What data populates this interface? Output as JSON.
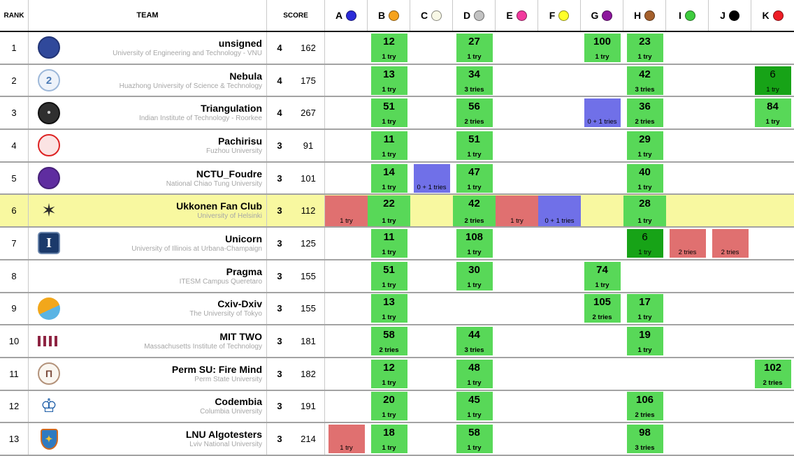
{
  "header": {
    "rank": "RANK",
    "team": "TEAM",
    "score": "SCORE"
  },
  "problems": [
    {
      "label": "A",
      "balloon_color": "#2b2bd8"
    },
    {
      "label": "B",
      "balloon_color": "#f6a21b"
    },
    {
      "label": "C",
      "balloon_color": "#f8f8e6"
    },
    {
      "label": "D",
      "balloon_color": "#c2c2c2"
    },
    {
      "label": "E",
      "balloon_color": "#f23a9e"
    },
    {
      "label": "F",
      "balloon_color": "#ffff2a"
    },
    {
      "label": "G",
      "balloon_color": "#8d169d"
    },
    {
      "label": "H",
      "balloon_color": "#a5602c"
    },
    {
      "label": "I",
      "balloon_color": "#3ecc3e"
    },
    {
      "label": "J",
      "balloon_color": "#000000"
    },
    {
      "label": "K",
      "balloon_color": "#ee1d25"
    }
  ],
  "status_colors": {
    "solved": "#58d858",
    "first_to_solve": "#17a317",
    "failed": "#e07070",
    "pending": "#7070e8",
    "highlight_row": "#f8f8a0"
  },
  "teams": [
    {
      "rank": 1,
      "name": "unsigned",
      "affiliation": "University of Engineering and Technology - VNU",
      "solved": 4,
      "penalty": 162,
      "highlight": false,
      "logo": {
        "shape": "circle",
        "bg": "#30499b",
        "border": "#223577",
        "glyph": "",
        "glyph_color": "#ffffff",
        "glyph_size": 15
      },
      "cells": {
        "B": {
          "state": "solved",
          "time": "12",
          "tries": "1 try"
        },
        "D": {
          "state": "solved",
          "time": "27",
          "tries": "1 try"
        },
        "G": {
          "state": "solved",
          "time": "100",
          "tries": "1 try"
        },
        "H": {
          "state": "solved",
          "time": "23",
          "tries": "1 try"
        }
      }
    },
    {
      "rank": 2,
      "name": "Nebula",
      "affiliation": "Huazhong University of Science & Technology",
      "solved": 4,
      "penalty": 175,
      "highlight": false,
      "logo": {
        "shape": "circle",
        "bg": "#eef3fa",
        "border": "#9db8d9",
        "glyph": "2",
        "glyph_color": "#4a7ab5",
        "glyph_size": 15
      },
      "cells": {
        "B": {
          "state": "solved",
          "time": "13",
          "tries": "1 try"
        },
        "D": {
          "state": "solved",
          "time": "34",
          "tries": "3 tries"
        },
        "H": {
          "state": "solved",
          "time": "42",
          "tries": "3 tries"
        },
        "K": {
          "state": "first",
          "time": "6",
          "tries": "1 try"
        }
      }
    },
    {
      "rank": 3,
      "name": "Triangulation",
      "affiliation": "Indian Institute of Technology - Roorkee",
      "solved": 4,
      "penalty": 267,
      "highlight": false,
      "logo": {
        "shape": "circle",
        "bg": "#2f2f2f",
        "border": "#111111",
        "glyph": "•",
        "glyph_color": "#cccccc",
        "glyph_size": 15
      },
      "cells": {
        "B": {
          "state": "solved",
          "time": "51",
          "tries": "1 try"
        },
        "D": {
          "state": "solved",
          "time": "56",
          "tries": "2 tries"
        },
        "G": {
          "state": "pending",
          "tries": "0 + 1 tries"
        },
        "H": {
          "state": "solved",
          "time": "36",
          "tries": "2 tries"
        },
        "K": {
          "state": "solved",
          "time": "84",
          "tries": "1 try"
        }
      }
    },
    {
      "rank": 4,
      "name": "Pachirisu",
      "affiliation": "Fuzhou University",
      "solved": 3,
      "penalty": 91,
      "highlight": false,
      "logo": {
        "shape": "circle",
        "bg": "#fbe3e3",
        "border": "#dd2222",
        "glyph": "",
        "glyph_color": "#dd2222",
        "glyph_size": 13
      },
      "cells": {
        "B": {
          "state": "solved",
          "time": "11",
          "tries": "1 try"
        },
        "D": {
          "state": "solved",
          "time": "51",
          "tries": "1 try"
        },
        "H": {
          "state": "solved",
          "time": "29",
          "tries": "1 try"
        }
      }
    },
    {
      "rank": 5,
      "name": "NCTU_Foudre",
      "affiliation": "National Chiao Tung University",
      "solved": 3,
      "penalty": 101,
      "highlight": false,
      "logo": {
        "shape": "circle",
        "bg": "#5f2da0",
        "border": "#47217a",
        "glyph": "",
        "glyph_color": "#ffffff",
        "glyph_size": 15
      },
      "cells": {
        "B": {
          "state": "solved",
          "time": "14",
          "tries": "1 try"
        },
        "C": {
          "state": "pending",
          "tries": "0 + 1 tries"
        },
        "D": {
          "state": "solved",
          "time": "47",
          "tries": "1 try"
        },
        "H": {
          "state": "solved",
          "time": "40",
          "tries": "1 try"
        }
      }
    },
    {
      "rank": 6,
      "name": "Ukkonen Fan Club",
      "affiliation": "University of Helsinki",
      "solved": 3,
      "penalty": 112,
      "highlight": true,
      "logo": {
        "shape": "glyph",
        "bg": "",
        "border": "",
        "glyph": "✶",
        "glyph_color": "#2b2b2b",
        "glyph_size": 26
      },
      "cells": {
        "A": {
          "state": "failed",
          "tries": "1 try"
        },
        "B": {
          "state": "solved",
          "time": "22",
          "tries": "1 try"
        },
        "D": {
          "state": "solved",
          "time": "42",
          "tries": "2 tries"
        },
        "E": {
          "state": "failed",
          "tries": "1 try"
        },
        "F": {
          "state": "pending",
          "tries": "0 + 1 tries"
        },
        "H": {
          "state": "solved",
          "time": "28",
          "tries": "1 try"
        }
      }
    },
    {
      "rank": 7,
      "name": "Unicorn",
      "affiliation": "University of Illinois at Urbana-Champaign",
      "solved": 3,
      "penalty": 125,
      "highlight": false,
      "logo": {
        "shape": "square",
        "bg": "#1b3a6b",
        "border": "#6b86ac",
        "glyph": "I",
        "glyph_color": "#ffffff",
        "glyph_size": 20
      },
      "cells": {
        "B": {
          "state": "solved",
          "time": "11",
          "tries": "1 try"
        },
        "D": {
          "state": "solved",
          "time": "108",
          "tries": "1 try"
        },
        "H": {
          "state": "first",
          "time": "6",
          "tries": "1 try"
        },
        "I": {
          "state": "failed",
          "tries": "2 tries"
        },
        "J": {
          "state": "failed",
          "tries": "2 tries"
        }
      }
    },
    {
      "rank": 8,
      "name": "Pragma",
      "affiliation": "ITESM Campus Queretaro",
      "solved": 3,
      "penalty": 155,
      "highlight": false,
      "logo": {
        "shape": "none",
        "bg": "",
        "border": "",
        "glyph": "",
        "glyph_color": "",
        "glyph_size": 15
      },
      "cells": {
        "B": {
          "state": "solved",
          "time": "51",
          "tries": "1 try"
        },
        "D": {
          "state": "solved",
          "time": "30",
          "tries": "1 try"
        },
        "G": {
          "state": "solved",
          "time": "74",
          "tries": "1 try"
        }
      }
    },
    {
      "rank": 9,
      "name": "Cxiv-Dxiv",
      "affiliation": "The University of Tokyo",
      "solved": 3,
      "penalty": 155,
      "highlight": false,
      "logo": {
        "shape": "duo",
        "bg": "#f2a71b",
        "bg2": "#5ab4e4",
        "border": "",
        "glyph": "",
        "glyph_color": "",
        "glyph_size": 15
      },
      "cells": {
        "B": {
          "state": "solved",
          "time": "13",
          "tries": "1 try"
        },
        "G": {
          "state": "solved",
          "time": "105",
          "tries": "2 tries"
        },
        "H": {
          "state": "solved",
          "time": "17",
          "tries": "1 try"
        }
      }
    },
    {
      "rank": 10,
      "name": "MIT TWO",
      "affiliation": "Massachusetts Institute of Technology",
      "solved": 3,
      "penalty": 181,
      "highlight": false,
      "logo": {
        "shape": "bars",
        "bg": "#8e2442",
        "border": "",
        "glyph": "",
        "glyph_color": "",
        "glyph_size": 15
      },
      "cells": {
        "B": {
          "state": "solved",
          "time": "58",
          "tries": "2 tries"
        },
        "D": {
          "state": "solved",
          "time": "44",
          "tries": "3 tries"
        },
        "H": {
          "state": "solved",
          "time": "19",
          "tries": "1 try"
        }
      }
    },
    {
      "rank": 11,
      "name": "Perm SU: Fire Mind",
      "affiliation": "Perm State University",
      "solved": 3,
      "penalty": 182,
      "highlight": false,
      "logo": {
        "shape": "circle",
        "bg": "#faf6f0",
        "border": "#b3927a",
        "glyph": "П",
        "glyph_color": "#7a4a3a",
        "glyph_size": 14
      },
      "cells": {
        "B": {
          "state": "solved",
          "time": "12",
          "tries": "1 try"
        },
        "D": {
          "state": "solved",
          "time": "48",
          "tries": "1 try"
        },
        "K": {
          "state": "solved",
          "time": "102",
          "tries": "2 tries"
        }
      }
    },
    {
      "rank": 12,
      "name": "Codembia",
      "affiliation": "Columbia University",
      "solved": 3,
      "penalty": 191,
      "highlight": false,
      "logo": {
        "shape": "glyph",
        "bg": "",
        "border": "",
        "glyph": "♔",
        "glyph_color": "#1f5fa8",
        "glyph_size": 27
      },
      "cells": {
        "B": {
          "state": "solved",
          "time": "20",
          "tries": "1 try"
        },
        "D": {
          "state": "solved",
          "time": "45",
          "tries": "1 try"
        },
        "H": {
          "state": "solved",
          "time": "106",
          "tries": "2 tries"
        }
      }
    },
    {
      "rank": 13,
      "name": "LNU Algotesters",
      "affiliation": "Lviv National University",
      "solved": 3,
      "penalty": 214,
      "highlight": false,
      "logo": {
        "shape": "shield",
        "bg": "#2f7ac0",
        "border": "#d2691e",
        "glyph": "✦",
        "glyph_color": "#f2c230",
        "glyph_size": 13
      },
      "cells": {
        "A": {
          "state": "failed",
          "tries": "1 try"
        },
        "B": {
          "state": "solved",
          "time": "18",
          "tries": "1 try"
        },
        "D": {
          "state": "solved",
          "time": "58",
          "tries": "1 try"
        },
        "H": {
          "state": "solved",
          "time": "98",
          "tries": "3 tries"
        }
      }
    }
  ]
}
